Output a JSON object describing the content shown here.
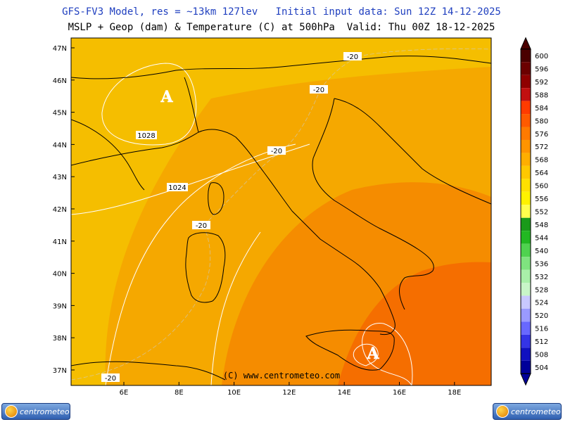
{
  "header": {
    "line1": "GFS-FV3 Model, res = ~13km 127lev   Initial input data: Sun 12Z 14-12-2025",
    "line2": "MSLP + Geop (dam) & Temperature (C) at 500hPa  Valid: Thu 00Z 18-12-2025"
  },
  "map": {
    "lat_labels": [
      "47N",
      "46N",
      "45N",
      "44N",
      "43N",
      "42N",
      "41N",
      "40N",
      "39N",
      "38N",
      "37N"
    ],
    "lon_labels": [
      "6E",
      "8E",
      "10E",
      "12E",
      "14E",
      "16E",
      "18E"
    ],
    "temp_labels": [
      "-20",
      "-20",
      "-20",
      "-20",
      "-20"
    ],
    "isobar_labels": [
      "1028",
      "1024"
    ],
    "high_markers": [
      "A",
      "A"
    ],
    "watermark": "(C) www.centrometeo.com",
    "colors": {
      "geop_564": "#f5be00",
      "geop_568": "#f5a800",
      "geop_572": "#f58c00",
      "geop_576": "#f56e00",
      "land_border": "#000000",
      "isobar": "#ffffff"
    }
  },
  "colorbar": {
    "labels": [
      "600",
      "596",
      "592",
      "588",
      "584",
      "580",
      "576",
      "572",
      "568",
      "564",
      "560",
      "556",
      "552",
      "548",
      "544",
      "540",
      "536",
      "532",
      "528",
      "524",
      "520",
      "516",
      "512",
      "508",
      "504"
    ],
    "colors": [
      "#4a0000",
      "#6b0000",
      "#8f0000",
      "#c21010",
      "#ff3b00",
      "#ff5a00",
      "#ff7a00",
      "#ff9400",
      "#ffae00",
      "#ffc800",
      "#ffe000",
      "#fff200",
      "#ffff4d",
      "#1a9a1a",
      "#22b822",
      "#4fd24f",
      "#7fe37f",
      "#a9efa9",
      "#c8f5c8",
      "#c8c8ff",
      "#9a9aff",
      "#6868ff",
      "#3434e6",
      "#1010c0",
      "#000099"
    ]
  },
  "logos": {
    "left_text": "centrometeo",
    "right_text": "centrometeo"
  }
}
